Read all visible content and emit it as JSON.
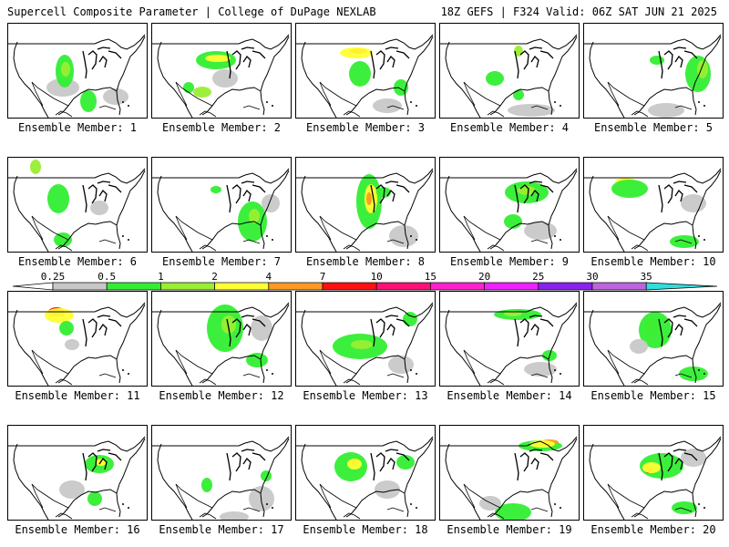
{
  "header": {
    "left": "Supercell Composite Parameter | College of DuPage NEXLAB",
    "right": "18Z GEFS | F324 Valid: 06Z SAT JUN 21 2025"
  },
  "members": [
    {
      "label": "Ensemble Member: 1"
    },
    {
      "label": "Ensemble Member: 2"
    },
    {
      "label": "Ensemble Member: 3"
    },
    {
      "label": "Ensemble Member: 4"
    },
    {
      "label": "Ensemble Member: 5"
    },
    {
      "label": "Ensemble Member: 6"
    },
    {
      "label": "Ensemble Member: 7"
    },
    {
      "label": "Ensemble Member: 8"
    },
    {
      "label": "Ensemble Member: 9"
    },
    {
      "label": "Ensemble Member: 10"
    },
    {
      "label": "Ensemble Member: 11"
    },
    {
      "label": "Ensemble Member: 12"
    },
    {
      "label": "Ensemble Member: 13"
    },
    {
      "label": "Ensemble Member: 14"
    },
    {
      "label": "Ensemble Member: 15"
    },
    {
      "label": "Ensemble Member: 16"
    },
    {
      "label": "Ensemble Member: 17"
    },
    {
      "label": "Ensemble Member: 18"
    },
    {
      "label": "Ensemble Member: 19"
    },
    {
      "label": "Ensemble Member: 20"
    }
  ],
  "colorbar": {
    "ticks": [
      "0.25",
      "0.5",
      "1",
      "2",
      "4",
      "7",
      "10",
      "15",
      "20",
      "25",
      "30",
      "35"
    ],
    "colors": [
      "#c8c8c8",
      "#33ee33",
      "#99ee33",
      "#ffff33",
      "#ff9922",
      "#ff1111",
      "#ff1177",
      "#ff22cc",
      "#ee22ff",
      "#8822ee",
      "#bb66dd",
      "#33dddd"
    ]
  }
}
